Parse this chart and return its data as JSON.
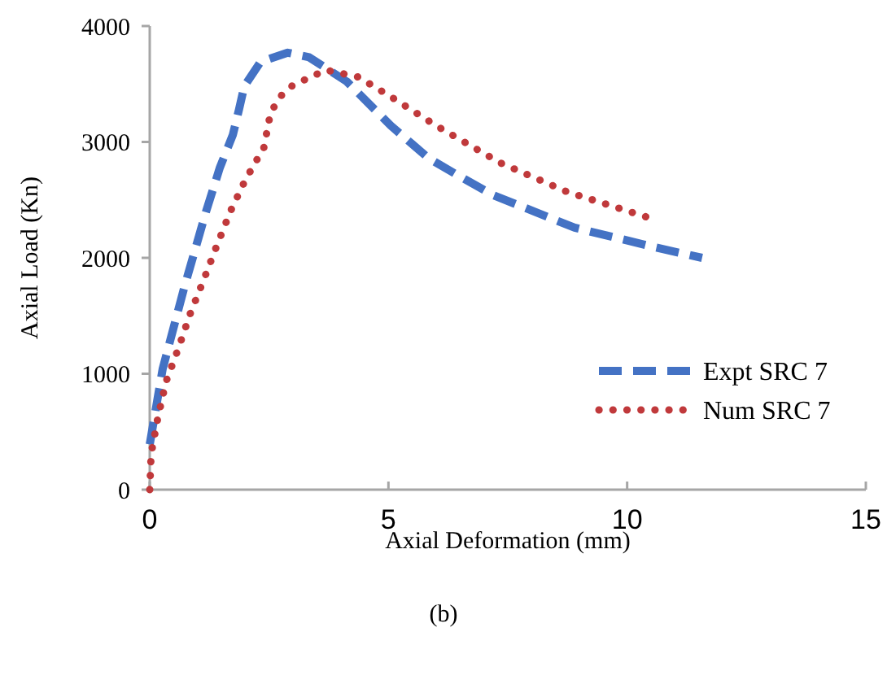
{
  "chart_data": {
    "type": "line",
    "xlabel": "Axial Deformation (mm)",
    "ylabel": "Axial Load (Kn)",
    "xlim": [
      0,
      15
    ],
    "xticks": [
      0,
      5,
      10,
      15
    ],
    "ylim": [
      0,
      4000
    ],
    "yticks": [
      0,
      1000,
      2000,
      3000,
      4000
    ],
    "grid": false,
    "legend": "right",
    "annotations": [
      "(b)"
    ],
    "series": [
      {
        "name": "Expt SRC 7",
        "color": "#4472c4",
        "line_style": "dashed",
        "x": [
          0,
          0.27,
          0.72,
          1.18,
          1.47,
          1.74,
          1.87,
          1.98,
          2.32,
          2.89,
          3.34,
          4.13,
          5.05,
          5.84,
          6.42,
          7.2,
          8.9,
          10.6,
          11.57
        ],
        "values": [
          390,
          1040,
          1740,
          2400,
          2780,
          3060,
          3280,
          3480,
          3690,
          3770,
          3730,
          3520,
          3140,
          2860,
          2720,
          2540,
          2260,
          2090,
          2000
        ]
      },
      {
        "name": "Num SRC 7",
        "color": "#c0393b",
        "line_style": "dotted",
        "x": [
          0,
          0.03,
          0.17,
          0.34,
          0.61,
          0.85,
          1.13,
          1.4,
          1.7,
          2.0,
          2.39,
          2.53,
          2.73,
          3.0,
          3.69,
          4.37,
          5.05,
          6.0,
          7.34,
          8.74,
          10.58
        ],
        "values": [
          0,
          310,
          620,
          930,
          1230,
          1520,
          1810,
          2100,
          2410,
          2670,
          2950,
          3250,
          3390,
          3490,
          3620,
          3560,
          3390,
          3140,
          2820,
          2570,
          2330
        ]
      }
    ]
  }
}
